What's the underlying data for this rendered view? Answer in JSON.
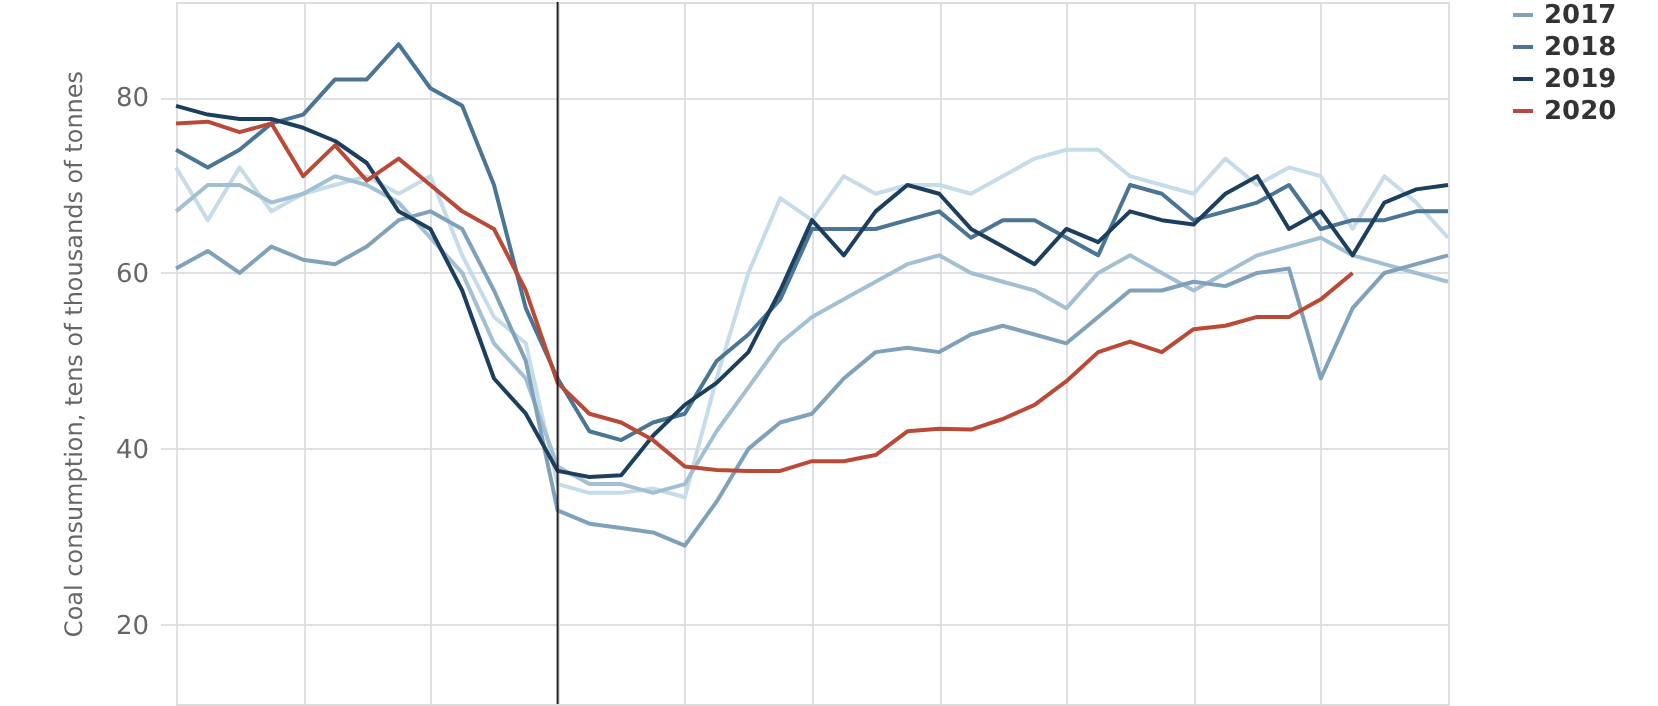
{
  "chart_data": {
    "type": "line",
    "ylabel": "Coal consumption, tens of thousands of tonnes",
    "categories": [
      null,
      null,
      null,
      null,
      null,
      null,
      null,
      null,
      null,
      null,
      null,
      null,
      null,
      null,
      null,
      null,
      null,
      null,
      null,
      null,
      null,
      null,
      null,
      null,
      null,
      null,
      null,
      null,
      null,
      null,
      null,
      null,
      null,
      null,
      null,
      null,
      null,
      null,
      null,
      null,
      null
    ],
    "series": [
      {
        "color": "#c6dce9",
        "values": [
          72,
          66,
          72,
          67,
          69,
          70,
          71,
          69,
          71,
          62,
          55,
          52,
          36,
          35,
          35,
          35.5,
          34.5,
          48,
          60,
          68.5,
          66,
          71,
          69,
          70,
          70,
          69,
          71,
          73,
          74,
          74,
          71,
          70,
          69,
          73,
          70,
          72,
          71,
          65,
          71,
          68,
          64
        ]
      },
      {
        "color": "#a3c0d3",
        "values": [
          67,
          70,
          70,
          68,
          69,
          71,
          70,
          68,
          64,
          60,
          52,
          48,
          38,
          36,
          36,
          35,
          36,
          42,
          47,
          52,
          55,
          57,
          59,
          61,
          62,
          60,
          59,
          58,
          56,
          60,
          62,
          60,
          58,
          60,
          62,
          63,
          64,
          62,
          61,
          60,
          59
        ]
      },
      {
        "name": "2017",
        "color": "#7fa2ba",
        "values": [
          60.5,
          62.5,
          60,
          63,
          61.5,
          61,
          63,
          66,
          67,
          65,
          58,
          50,
          33,
          31.5,
          31,
          30.5,
          29,
          34,
          40,
          43,
          44,
          48,
          51,
          51.5,
          51,
          53,
          54,
          53,
          52,
          55,
          58,
          58,
          59,
          58.5,
          60,
          60.5,
          48,
          56,
          60,
          61,
          62
        ]
      },
      {
        "name": "2018",
        "color": "#4a7594",
        "values": [
          74,
          72,
          74,
          77,
          78,
          82,
          82,
          86,
          81,
          79,
          70,
          56,
          48,
          42,
          41,
          43,
          44,
          50,
          53,
          57,
          65,
          65,
          65,
          66,
          67,
          64,
          66,
          66,
          64,
          62,
          70,
          69,
          66,
          67,
          68,
          70,
          65,
          66,
          66,
          67,
          67
        ]
      },
      {
        "name": "2019",
        "color": "#1d3f5e",
        "values": [
          79,
          78,
          77.5,
          77.5,
          76.5,
          75,
          72.5,
          67,
          65,
          58,
          48,
          44,
          37.5,
          36.8,
          37,
          41.5,
          45,
          47.5,
          51,
          58,
          66,
          62,
          67,
          70,
          69,
          65,
          63,
          61,
          65,
          63.5,
          67,
          66,
          65.5,
          69,
          71,
          65,
          67,
          62,
          68,
          69.5,
          70
        ]
      },
      {
        "name": "2020",
        "color": "#b94a37",
        "values": [
          77,
          77.2,
          76,
          77,
          71,
          74.5,
          70.5,
          73,
          70,
          67,
          65,
          58,
          47.5,
          44,
          43,
          41,
          38,
          37.6,
          37.5,
          37.5,
          38.6,
          38.6,
          39.3,
          42,
          42.3,
          42.2,
          43.4,
          45,
          47.7,
          51,
          52.2,
          51,
          53.6,
          54,
          55,
          55,
          57,
          60,
          null,
          null,
          null
        ]
      }
    ],
    "ylim": [
      11,
      90.8
    ],
    "yticks": [
      20,
      40,
      60,
      80
    ],
    "grid": true,
    "legend": "top right",
    "tick_labels": "y",
    "marker": "none",
    "line_style": "solid"
  }
}
